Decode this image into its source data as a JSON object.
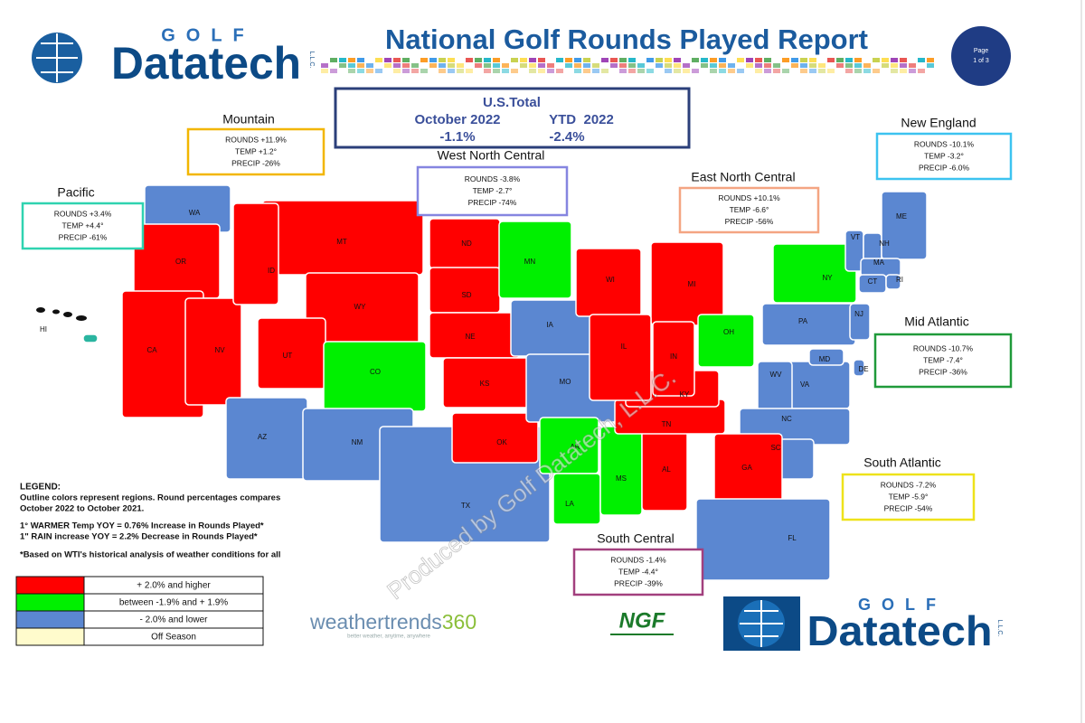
{
  "header": {
    "logo_top": "GOLF",
    "logo_brand": "Datatech",
    "logo_suffix": "L.L.C.",
    "title": "National Golf Rounds Played Report",
    "page_label": "Page",
    "page_number": "1 of 3"
  },
  "us_total": {
    "label": "U.S.Total",
    "period_1": "October 2022",
    "period_2": "YTD  2022",
    "value_1": "-1.1%",
    "value_2": "-2.4%"
  },
  "regions": [
    {
      "name": "Mountain",
      "rounds": "ROUNDS +11.9%",
      "temp": "TEMP +1.2°",
      "precip": "PRECIP -26%",
      "color": "#f2b600"
    },
    {
      "name": "Pacific",
      "rounds": "ROUNDS +3.4%",
      "temp": "TEMP +4.4°",
      "precip": "PRECIP -61%",
      "color": "#2fd3b0"
    },
    {
      "name": "West North Central",
      "rounds": "ROUNDS -3.8%",
      "temp": "TEMP -2.7°",
      "precip": "PRECIP -74%",
      "color": "#8585e0"
    },
    {
      "name": "East North Central",
      "rounds": "ROUNDS +10.1%",
      "temp": "TEMP -6.6°",
      "precip": "PRECIP -56%",
      "color": "#f4a582"
    },
    {
      "name": "New England",
      "rounds": "ROUNDS -10.1%",
      "temp": "TEMP -3.2°",
      "precip": "PRECIP -6.0%",
      "color": "#3cc3f0"
    },
    {
      "name": "Mid Atlantic",
      "rounds": "ROUNDS -10.7%",
      "temp": "TEMP -7.4°",
      "precip": "PRECIP -36%",
      "color": "#1f9a3a"
    },
    {
      "name": "South Atlantic",
      "rounds": "ROUNDS -7.2%",
      "temp": "TEMP -5.9°",
      "precip": "PRECIP -54%",
      "color": "#eee21a"
    },
    {
      "name": "South Central",
      "rounds": "ROUNDS -1.4%",
      "temp": "TEMP -4.4°",
      "precip": "PRECIP -39%",
      "color": "#a2407e"
    }
  ],
  "states": [
    {
      "abbr": "WA",
      "color": "#5b87d1"
    },
    {
      "abbr": "OR",
      "color": "#ff0000"
    },
    {
      "abbr": "CA",
      "color": "#ff0000"
    },
    {
      "abbr": "NV",
      "color": "#ff0000"
    },
    {
      "abbr": "MT",
      "color": "#ff0000"
    },
    {
      "abbr": "ID",
      "color": "#ff0000"
    },
    {
      "abbr": "WY",
      "color": "#ff0000"
    },
    {
      "abbr": "UT",
      "color": "#ff0000"
    },
    {
      "abbr": "CO",
      "color": "#00f000"
    },
    {
      "abbr": "AZ",
      "color": "#5b87d1"
    },
    {
      "abbr": "NM",
      "color": "#5b87d1"
    },
    {
      "abbr": "ND",
      "color": "#ff0000"
    },
    {
      "abbr": "SD",
      "color": "#ff0000"
    },
    {
      "abbr": "NE",
      "color": "#ff0000"
    },
    {
      "abbr": "KS",
      "color": "#ff0000"
    },
    {
      "abbr": "TX",
      "color": "#5b87d1"
    },
    {
      "abbr": "OK",
      "color": "#ff0000"
    },
    {
      "abbr": "MN",
      "color": "#00f000"
    },
    {
      "abbr": "IA",
      "color": "#5b87d1"
    },
    {
      "abbr": "MO",
      "color": "#5b87d1"
    },
    {
      "abbr": "AR",
      "color": "#00f000"
    },
    {
      "abbr": "LA",
      "color": "#00f000"
    },
    {
      "abbr": "MS",
      "color": "#00f000"
    },
    {
      "abbr": "AL",
      "color": "#ff0000"
    },
    {
      "abbr": "TN",
      "color": "#ff0000"
    },
    {
      "abbr": "KY",
      "color": "#ff0000"
    },
    {
      "abbr": "WI",
      "color": "#ff0000"
    },
    {
      "abbr": "MI",
      "color": "#ff0000"
    },
    {
      "abbr": "IL",
      "color": "#ff0000"
    },
    {
      "abbr": "IN",
      "color": "#ff0000"
    },
    {
      "abbr": "OH",
      "color": "#00f000"
    },
    {
      "abbr": "PA",
      "color": "#5b87d1"
    },
    {
      "abbr": "NY",
      "color": "#00f000"
    },
    {
      "abbr": "NJ",
      "color": "#5b87d1"
    },
    {
      "abbr": "VT",
      "color": "#5b87d1"
    },
    {
      "abbr": "NH",
      "color": "#5b87d1"
    },
    {
      "abbr": "ME",
      "color": "#5b87d1"
    },
    {
      "abbr": "MA",
      "color": "#5b87d1"
    },
    {
      "abbr": "CT",
      "color": "#5b87d1"
    },
    {
      "abbr": "RI",
      "color": "#5b87d1"
    },
    {
      "abbr": "VA",
      "color": "#5b87d1"
    },
    {
      "abbr": "WV",
      "color": "#5b87d1"
    },
    {
      "abbr": "MD",
      "color": "#5b87d1"
    },
    {
      "abbr": "DE",
      "color": "#5b87d1"
    },
    {
      "abbr": "NC",
      "color": "#5b87d1"
    },
    {
      "abbr": "SC",
      "color": "#5b87d1"
    },
    {
      "abbr": "GA",
      "color": "#ff0000"
    },
    {
      "abbr": "FL",
      "color": "#5b87d1"
    },
    {
      "abbr": "HI",
      "color": "#2ab5a0"
    }
  ],
  "legend": {
    "heading": "LEGEND:",
    "notes": [
      "Outline colors represent regions. Round percentages compares",
      "October 2022 to October 2021.",
      "1° WARMER Temp YOY = 0.76% Increase in Rounds Played*",
      "1\" RAIN increase YOY = 2.2% Decrease in Rounds Played*",
      "*Based on WTI's historical analysis of weather conditions for all"
    ],
    "items": [
      {
        "label": "+ 2.0% and higher",
        "color": "#ff0000"
      },
      {
        "label": "between -1.9% and + 1.9%",
        "color": "#00f000"
      },
      {
        "label": "- 2.0% and lower",
        "color": "#5b87d1"
      },
      {
        "label": "Off Season",
        "color": "#fffbcc"
      }
    ]
  },
  "footer": {
    "weathertrends": "weathertrends",
    "weathertrends_num": "360",
    "tagline": "better weather, anytime, anywhere",
    "ngf": "NGF"
  },
  "watermark": "Produced by Golf Datatech, L.L.C."
}
